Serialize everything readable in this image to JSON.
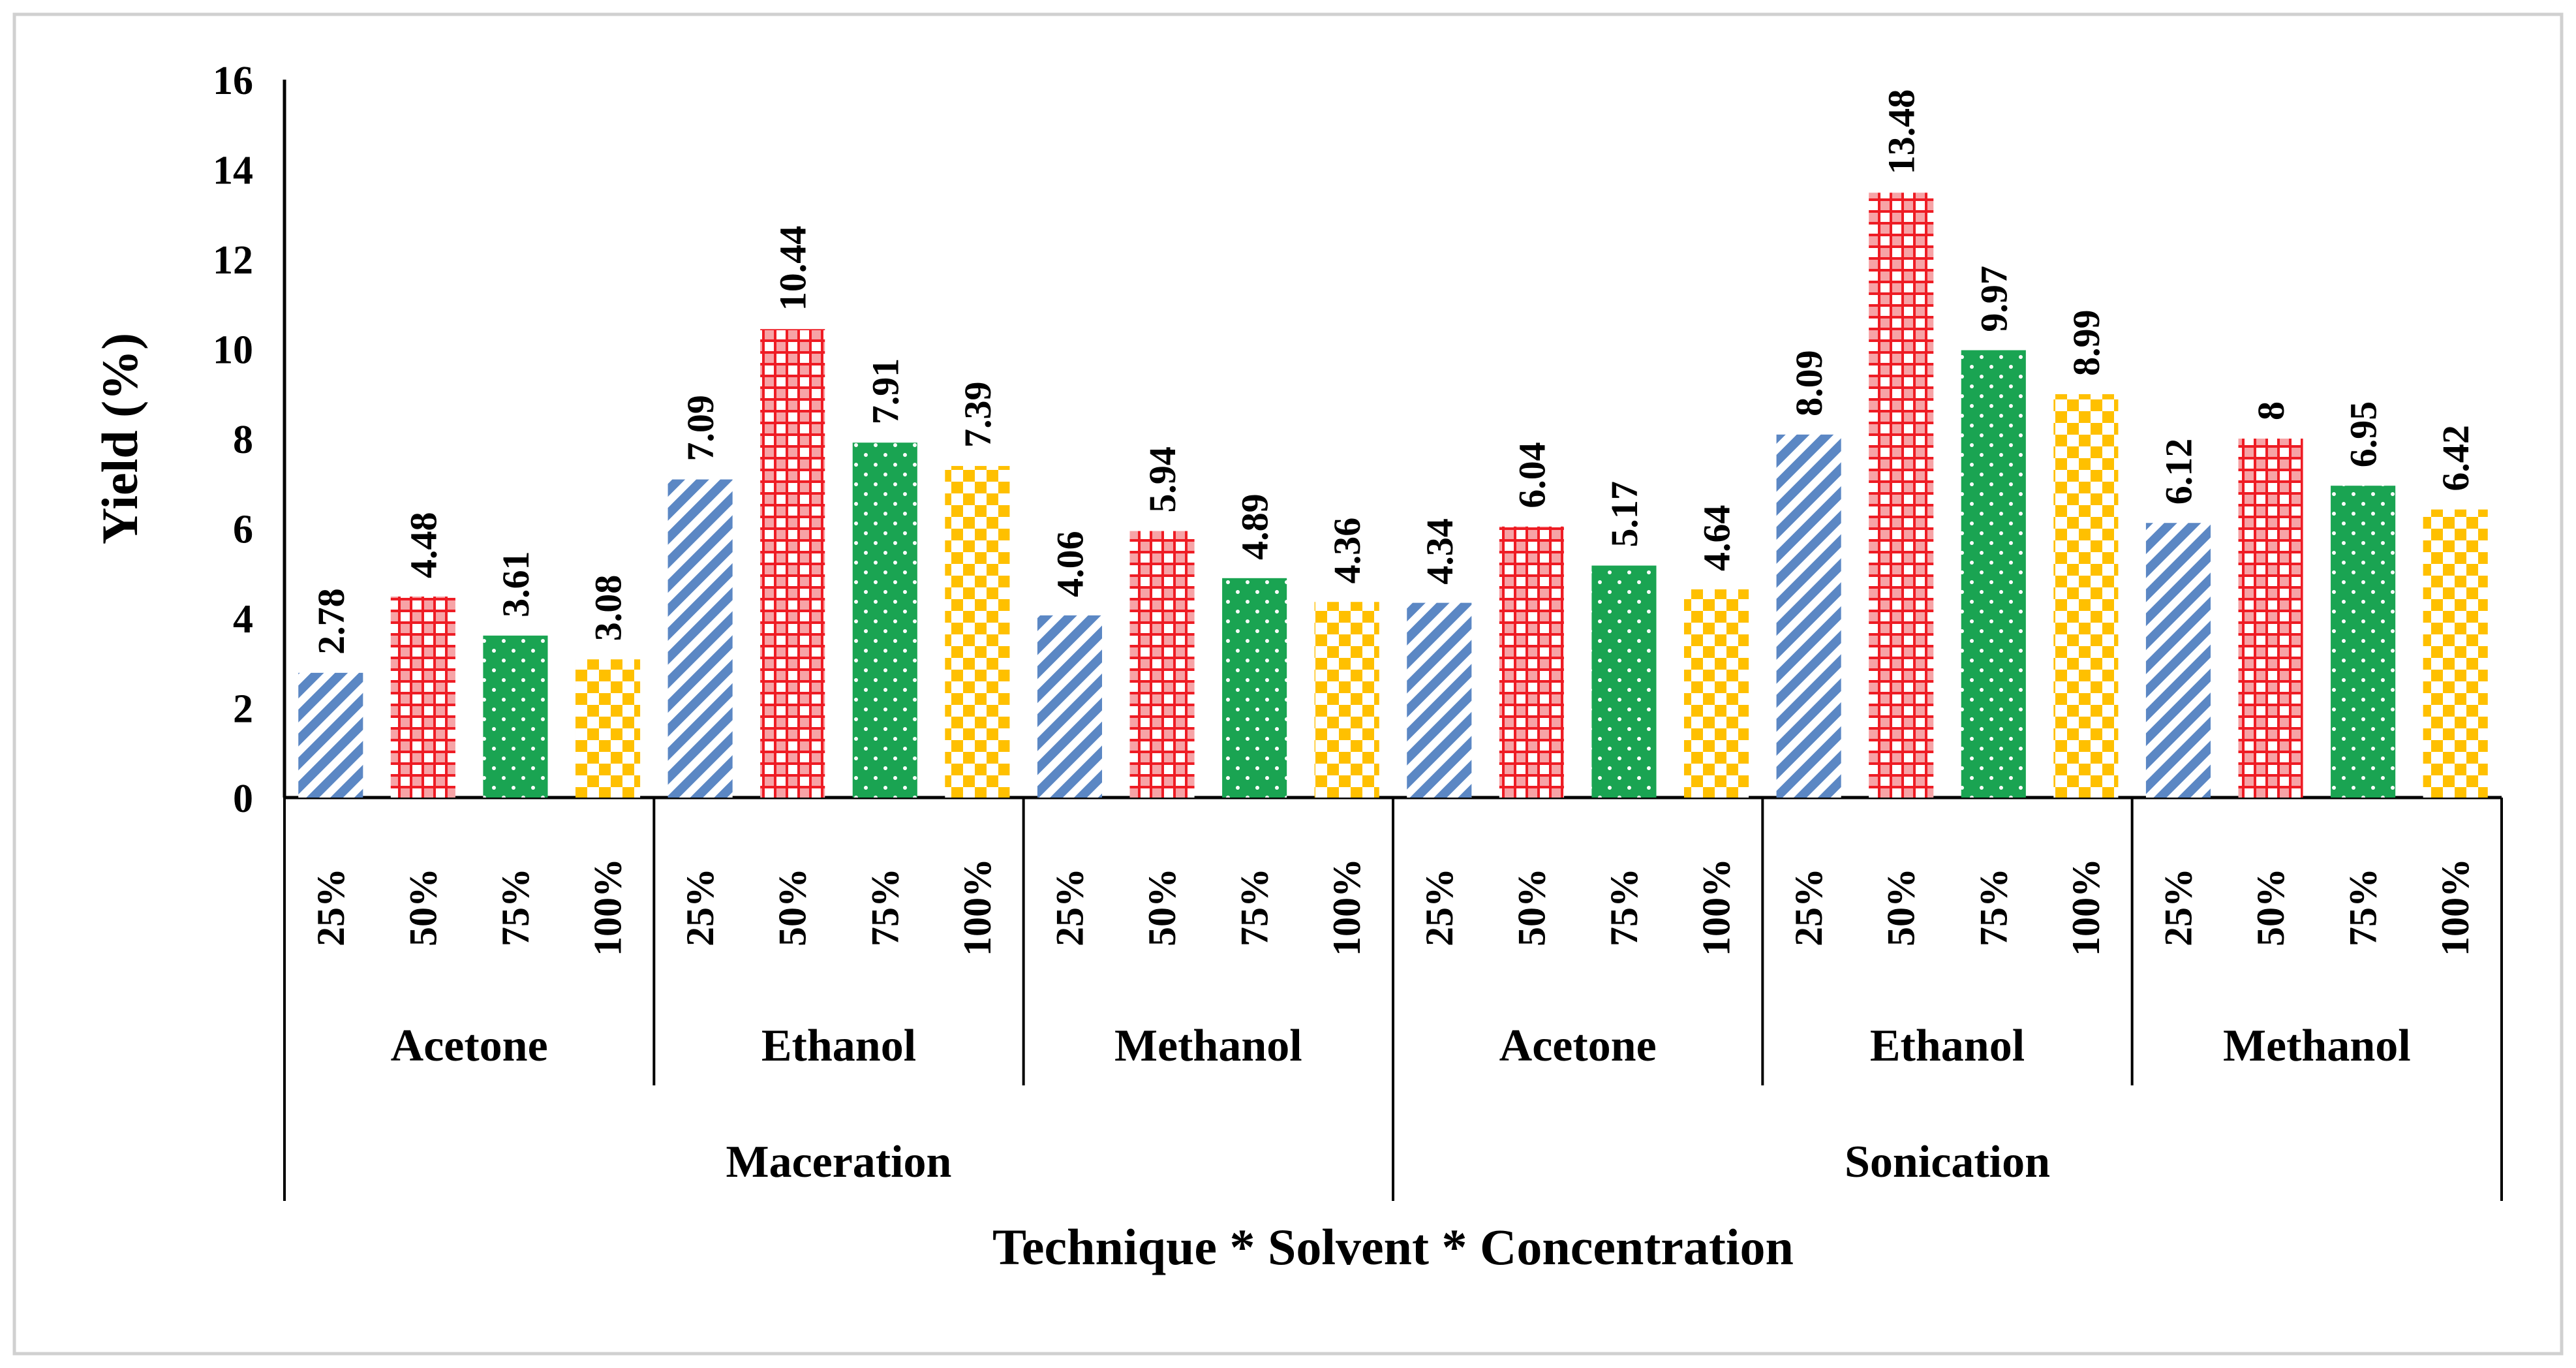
{
  "chart_data": {
    "type": "bar",
    "title": "",
    "xlabel": "Technique * Solvent * Concentration",
    "ylabel": "Yield (%)",
    "ylim": [
      0,
      16
    ],
    "yticks": [
      "0",
      "2",
      "4",
      "6",
      "8",
      "10",
      "12",
      "14",
      "16"
    ],
    "grid": false,
    "techniques": [
      {
        "name": "Maceration",
        "solvents": [
          {
            "name": "Acetone",
            "values": [
              2.78,
              4.48,
              3.61,
              3.08
            ],
            "labels": [
              "2.78",
              "4.48",
              "3.61",
              "3.08"
            ]
          },
          {
            "name": "Ethanol",
            "values": [
              7.09,
              10.44,
              7.91,
              7.39
            ],
            "labels": [
              "7.09",
              "10.44",
              "7.91",
              "7.39"
            ]
          },
          {
            "name": "Methanol",
            "values": [
              4.06,
              5.94,
              4.89,
              4.36
            ],
            "labels": [
              "4.06",
              "5.94",
              "4.89",
              "4.36"
            ]
          }
        ]
      },
      {
        "name": "Sonication",
        "solvents": [
          {
            "name": "Acetone",
            "values": [
              4.34,
              6.04,
              5.17,
              4.64
            ],
            "labels": [
              "4.34",
              "6.04",
              "5.17",
              "4.64"
            ]
          },
          {
            "name": "Ethanol",
            "values": [
              8.09,
              13.48,
              9.97,
              8.99
            ],
            "labels": [
              "8.09",
              "13.48",
              "9.97",
              "8.99"
            ]
          },
          {
            "name": "Methanol",
            "values": [
              6.12,
              8,
              6.95,
              6.42
            ],
            "labels": [
              "6.12",
              "8",
              "6.95",
              "6.42"
            ]
          }
        ]
      }
    ],
    "concentrations": [
      "25%",
      "50%",
      "75%",
      "100%"
    ],
    "series_colors": [
      "#5b87c4",
      "#ee1c24",
      "#1aa452",
      "#ffc000"
    ],
    "series_patterns": [
      "diagonal-stripes",
      "checkered",
      "dots",
      "checkered"
    ]
  }
}
